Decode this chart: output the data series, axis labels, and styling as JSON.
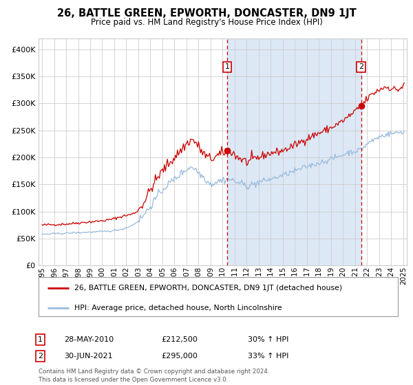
{
  "title": "26, BATTLE GREEN, EPWORTH, DONCASTER, DN9 1JT",
  "subtitle": "Price paid vs. HM Land Registry's House Price Index (HPI)",
  "legend_line1": "26, BATTLE GREEN, EPWORTH, DONCASTER, DN9 1JT (detached house)",
  "legend_line2": "HPI: Average price, detached house, North Lincolnshire",
  "sale1_date": "28-MAY-2010",
  "sale1_price": 212500,
  "sale1_label": "30% ↑ HPI",
  "sale2_date": "30-JUN-2021",
  "sale2_price": 295000,
  "sale2_label": "33% ↑ HPI",
  "footer": "Contains HM Land Registry data © Crown copyright and database right 2024.\nThis data is licensed under the Open Government Licence v3.0.",
  "red_color": "#cc0000",
  "blue_color": "#99bbdd",
  "background_shaded": "#dce8f5",
  "ylim": [
    0,
    420000
  ],
  "yticks": [
    0,
    50000,
    100000,
    150000,
    200000,
    250000,
    300000,
    350000,
    400000
  ],
  "start_year": 1995,
  "end_year": 2025,
  "sale1_year": 2010.38,
  "sale2_year": 2021.5
}
